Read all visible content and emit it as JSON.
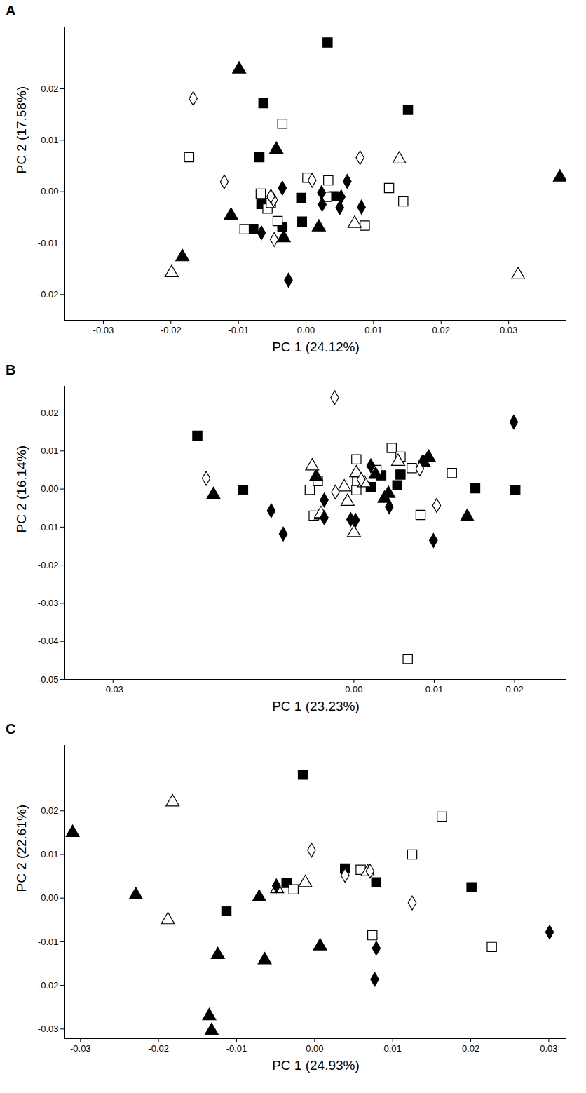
{
  "chart_data": [
    {
      "panel": "A",
      "type": "scatter",
      "x_label": "PC 1 (24.12%)",
      "y_label": "PC 2 (17.58%)",
      "xlim": [
        -0.0357,
        0.0386
      ],
      "ylim": [
        -0.025,
        0.032
      ],
      "xticks": [
        -0.03,
        -0.02,
        -0.01,
        {
          "value": 0,
          "label": "0.00"
        },
        0.01,
        0.02,
        0.03
      ],
      "yticks": [
        -0.02,
        -0.01,
        {
          "value": 0,
          "label": "0.00"
        },
        0.01,
        0.02
      ],
      "series": [
        {
          "marker": "square",
          "color": "#000000",
          "x": [
            0.0032,
            -0.0063,
            0.0151,
            -0.0069,
            -0.0066,
            -0.0078,
            -0.0035,
            -0.0006,
            -0.0007,
            0.0041
          ],
          "y": [
            0.029,
            0.0172,
            0.0159,
            0.0067,
            -0.0024,
            -0.0073,
            -0.0069,
            -0.0058,
            -0.0012,
            -0.0009
          ]
        },
        {
          "marker": "square",
          "color": "#ffffff",
          "x": [
            -0.0173,
            -0.0035,
            0.0002,
            0.0033,
            -0.0067,
            -0.0057,
            -0.0042,
            -0.0091,
            0.0031,
            0.0087,
            0.0123,
            0.0144,
            -0.0052
          ],
          "y": [
            0.0067,
            0.0132,
            0.0027,
            0.0022,
            -0.0004,
            -0.0033,
            -0.0057,
            -0.0073,
            -0.001,
            -0.0066,
            0.0007,
            -0.0019,
            -0.0022
          ]
        },
        {
          "marker": "triangle",
          "color": "#000000",
          "x": [
            -0.0099,
            -0.0044,
            -0.0111,
            -0.0183,
            -0.0033,
            0.0019,
            0.0376
          ],
          "y": [
            0.0238,
            0.0082,
            -0.0046,
            -0.0127,
            -0.009,
            -0.0069,
            0.0028
          ]
        },
        {
          "marker": "triangle",
          "color": "#ffffff",
          "x": [
            -0.0199,
            0.0072,
            0.0138,
            0.0314
          ],
          "y": [
            -0.0158,
            -0.0062,
            0.0063,
            -0.0162
          ]
        },
        {
          "marker": "diamond",
          "color": "#000000",
          "x": [
            -0.0035,
            -0.0066,
            0.0023,
            0.0061,
            0.0052,
            0.005,
            0.0082,
            0.0024,
            -0.0026
          ],
          "y": [
            0.0007,
            -0.008,
            -0.0002,
            0.002,
            -0.001,
            -0.0031,
            -0.003,
            -0.0025,
            -0.0172
          ]
        },
        {
          "marker": "diamond",
          "color": "#ffffff",
          "x": [
            -0.0167,
            -0.0121,
            0.008,
            -0.0048,
            -0.0047,
            0.0009,
            -0.0052
          ],
          "y": [
            0.0181,
            0.0019,
            0.0066,
            -0.0016,
            -0.0093,
            0.0022,
            -0.0009
          ]
        }
      ]
    },
    {
      "panel": "B",
      "type": "scatter",
      "x_label": "PC 1 (23.23%)",
      "y_label": "PC 2 (16.14%)",
      "xlim": [
        -0.036,
        0.0265
      ],
      "ylim": [
        -0.05,
        0.027
      ],
      "xticks": [
        -0.03,
        {
          "value": 0,
          "label": "0.00"
        },
        0.01,
        0.02
      ],
      "yticks": [
        -0.05,
        -0.04,
        -0.03,
        -0.02,
        -0.01,
        {
          "value": 0,
          "label": "0.00"
        },
        0.01,
        0.02
      ],
      "series": [
        {
          "marker": "square",
          "color": "#000000",
          "x": [
            -0.0195,
            -0.0138,
            0.0034,
            0.0021,
            0.0058,
            0.0054,
            0.0151,
            0.0201
          ],
          "y": [
            0.014,
            -0.0002,
            0.0036,
            0.0005,
            0.0038,
            0.001,
            0.0002,
            -0.0003
          ]
        },
        {
          "marker": "square",
          "color": "#ffffff",
          "x": [
            -0.0055,
            -0.0045,
            -0.005,
            0.0003,
            0.0004,
            0.0028,
            0.0047,
            0.0058,
            0.0072,
            0.0083,
            0.0122,
            0.0067,
            0.0003
          ],
          "y": [
            -0.0002,
            0.0021,
            -0.007,
            0.0078,
            0.002,
            0.005,
            0.0108,
            0.0085,
            0.0055,
            -0.0068,
            0.0042,
            -0.0446,
            -0.0003
          ]
        },
        {
          "marker": "triangle",
          "color": "#000000",
          "x": [
            -0.0175,
            -0.0047,
            -0.0041,
            0.0027,
            0.0038,
            0.0043,
            0.0093,
            0.0141,
            0.0087
          ],
          "y": [
            -0.0015,
            0.0032,
            -0.0069,
            0.0038,
            -0.0025,
            -0.0012,
            0.0083,
            -0.0073,
            0.0069
          ]
        },
        {
          "marker": "triangle",
          "color": "#ffffff",
          "x": [
            -0.0052,
            -0.0012,
            -0.0008,
            0.0,
            0.0003,
            0.0013,
            -0.0041,
            0.0055
          ],
          "y": [
            0.006,
            0.0005,
            -0.0033,
            -0.0115,
            0.0042,
            0.0016,
            -0.0065,
            0.0072
          ]
        },
        {
          "marker": "diamond",
          "color": "#000000",
          "x": [
            0.0199,
            -0.0103,
            -0.0088,
            -0.0037,
            -0.0037,
            0.0002,
            0.0021,
            0.0044,
            0.0085,
            0.0099,
            -0.0004
          ],
          "y": [
            0.0176,
            -0.0057,
            -0.0118,
            -0.0029,
            -0.0075,
            -0.0082,
            0.0061,
            -0.0047,
            0.007,
            -0.0135,
            -0.008
          ]
        },
        {
          "marker": "diamond",
          "color": "#ffffff",
          "x": [
            -0.0024,
            -0.0184,
            -0.0023,
            0.0082,
            0.0103,
            0.0009
          ],
          "y": [
            0.024,
            0.0028,
            -0.0008,
            0.0053,
            -0.0043,
            0.0025
          ]
        }
      ]
    },
    {
      "panel": "C",
      "type": "scatter",
      "x_label": "PC 1 (24.93%)",
      "y_label": "PC 2 (22.61%)",
      "xlim": [
        -0.032,
        0.0323
      ],
      "ylim": [
        -0.0322,
        0.035
      ],
      "xticks": [
        -0.03,
        -0.02,
        -0.01,
        {
          "value": 0,
          "label": "0.00"
        },
        0.01,
        0.02,
        0.03
      ],
      "yticks": [
        -0.03,
        -0.02,
        -0.01,
        {
          "value": 0,
          "label": "0.00"
        },
        0.01,
        0.02
      ],
      "series": [
        {
          "marker": "square",
          "color": "#000000",
          "x": [
            -0.0015,
            -0.0036,
            -0.0113,
            0.0039,
            0.0079,
            0.0201
          ],
          "y": [
            0.0283,
            0.0035,
            -0.003,
            0.0068,
            0.0036,
            0.0025
          ]
        },
        {
          "marker": "square",
          "color": "#ffffff",
          "x": [
            -0.0027,
            0.0059,
            0.0074,
            0.0125,
            0.0163,
            0.0227
          ],
          "y": [
            0.002,
            0.0065,
            -0.0085,
            0.01,
            0.0187,
            -0.0112
          ]
        },
        {
          "marker": "triangle",
          "color": "#000000",
          "x": [
            -0.031,
            -0.0229,
            -0.0124,
            -0.0071,
            -0.0064,
            0.0007,
            -0.0135,
            -0.0132
          ],
          "y": [
            0.015,
            0.0007,
            -0.013,
            0.0002,
            -0.0142,
            -0.011,
            -0.027,
            -0.0304
          ]
        },
        {
          "marker": "triangle",
          "color": "#ffffff",
          "x": [
            -0.0182,
            -0.0188,
            -0.0048,
            -0.0012,
            0.0068
          ],
          "y": [
            0.022,
            -0.005,
            0.0021,
            0.0035,
            0.006
          ]
        },
        {
          "marker": "diamond",
          "color": "#000000",
          "x": [
            -0.0049,
            0.0079,
            0.0077,
            0.0301
          ],
          "y": [
            0.0028,
            -0.0115,
            -0.0186,
            -0.0078
          ]
        },
        {
          "marker": "diamond",
          "color": "#ffffff",
          "x": [
            -0.0004,
            0.0039,
            0.0125,
            0.0071
          ],
          "y": [
            0.011,
            0.0052,
            -0.0011,
            0.0062
          ]
        }
      ]
    }
  ]
}
